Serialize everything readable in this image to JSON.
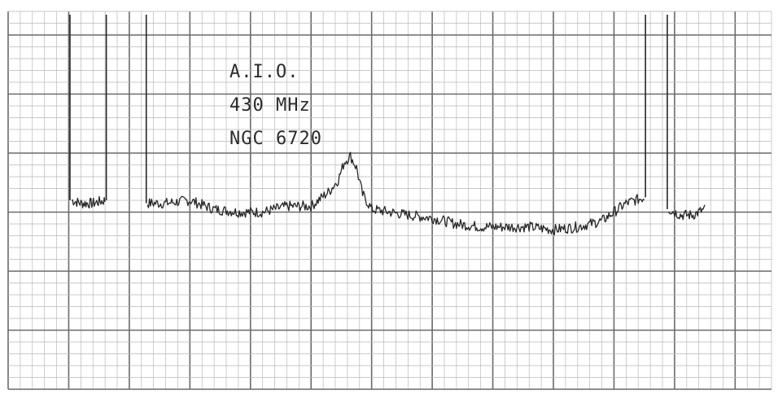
{
  "chart_data": {
    "type": "line",
    "title": "",
    "xlabel": "",
    "ylabel": "",
    "annotations": [
      "A.I.O.",
      "430 MHz",
      "NGC 6720"
    ],
    "grid": true,
    "legend": "none",
    "series": [
      {
        "x": [
          1.05,
          1.2,
          1.4,
          1.6
        ],
        "values": [
          3.2,
          3.15,
          3.15,
          3.2
        ]
      },
      {
        "x": [
          2.3,
          2.6,
          3.0,
          3.4,
          3.8,
          4.2,
          4.6,
          5.0,
          5.3,
          5.45,
          5.55,
          5.65,
          5.75,
          5.85,
          6.0,
          6.3,
          6.6,
          7.0,
          7.4,
          7.8,
          8.2,
          8.6,
          9.0,
          9.4,
          9.8,
          10.2,
          10.5
        ],
        "values": [
          3.15,
          3.15,
          3.2,
          3.05,
          3.0,
          3.0,
          3.1,
          3.1,
          3.35,
          3.55,
          3.85,
          3.95,
          3.75,
          3.3,
          3.05,
          3.0,
          2.95,
          2.9,
          2.8,
          2.75,
          2.75,
          2.75,
          2.7,
          2.75,
          2.85,
          3.15,
          3.25
        ]
      },
      {
        "x": [
          10.9,
          11.1,
          11.3,
          11.5
        ],
        "values": [
          3.05,
          2.95,
          2.95,
          3.05
        ]
      }
    ],
    "xlim": [
      0,
      12.6
    ],
    "ylim": [
      0,
      6.4
    ]
  },
  "colors": {
    "paper": "#ffffff",
    "fine_grid": "#b9b9b9",
    "major_grid": "#6a6a6a",
    "trace": "#262626",
    "text": "#2b2b2b"
  }
}
